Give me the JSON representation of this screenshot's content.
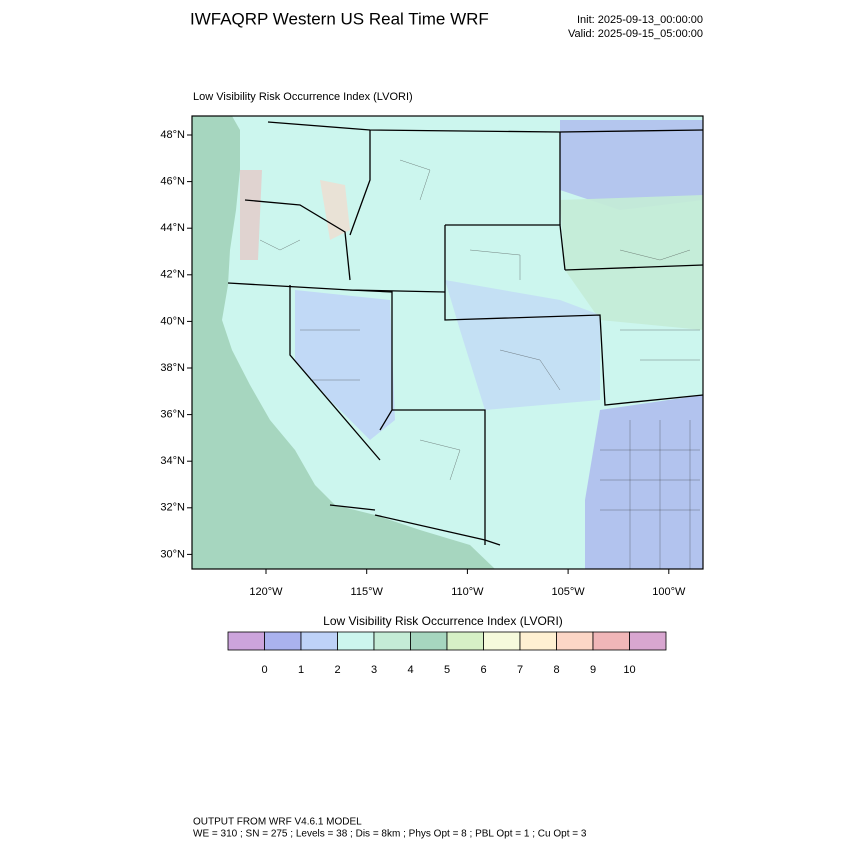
{
  "header": {
    "title": "IWFAQRP Western US Real Time WRF",
    "init": "Init: 2025-09-13_00:00:00",
    "valid": "Valid: 2025-09-15_05:00:00"
  },
  "map": {
    "title": "Low Visibility Risk Occurrence Index   (LVORI)",
    "lat_labels": [
      "48°N",
      "46°N",
      "44°N",
      "42°N",
      "40°N",
      "38°N",
      "36°N",
      "34°N",
      "32°N",
      "30°N"
    ],
    "lon_labels": [
      "120°W",
      "115°W",
      "110°W",
      "105°W",
      "100°W"
    ]
  },
  "colorbar": {
    "title": "Low Visibility Risk Occurrence Index  (LVORI)",
    "colors": [
      "#cca4dc",
      "#aab2ee",
      "#bed2f8",
      "#ccf6ee",
      "#c4ecd6",
      "#a6d6bf",
      "#d6f0c6",
      "#f6fadc",
      "#fff0d2",
      "#fcd6c6",
      "#f0b6b8",
      "#d8a6d0"
    ],
    "labels": [
      0,
      1,
      2,
      3,
      4,
      5,
      6,
      7,
      8,
      9,
      10
    ]
  },
  "footer": {
    "line1": "OUTPUT FROM WRF V4.6.1 MODEL",
    "line2": "WE = 310 ; SN = 275 ; Levels = 38 ; Dis = 8km ; Phys Opt = 8 ; PBL Opt = 1 ; Cu Opt = 3"
  }
}
